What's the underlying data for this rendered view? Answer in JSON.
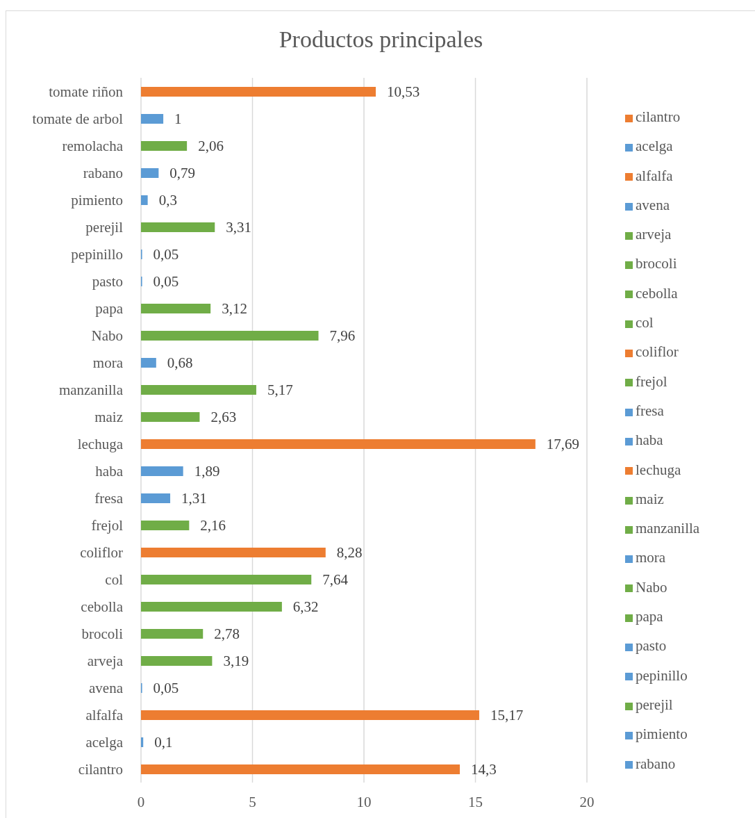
{
  "chart_data": {
    "type": "bar",
    "orientation": "horizontal",
    "stacked": true,
    "title": "Productos principales",
    "categories": [
      "tomate riñon",
      "tomate de arbol",
      "remolacha",
      "rabano",
      "pimiento",
      "perejil",
      "pepinillo",
      "pasto",
      "papa",
      "Nabo",
      "mora",
      "manzanilla",
      "maiz",
      "lechuga",
      "haba",
      "fresa",
      "frejol",
      "coliflor",
      "col",
      "cebolla",
      "brocoli",
      "arveja",
      "avena",
      "alfalfa",
      "acelga",
      "cilantro"
    ],
    "series": [
      {
        "name": "cilantro",
        "color": "#ed7d31",
        "values": [
          null,
          null,
          null,
          null,
          null,
          null,
          null,
          null,
          null,
          null,
          null,
          null,
          null,
          null,
          null,
          null,
          null,
          null,
          null,
          null,
          null,
          null,
          null,
          null,
          null,
          14.3
        ],
        "value_labels": [
          null,
          null,
          null,
          null,
          null,
          null,
          null,
          null,
          null,
          null,
          null,
          null,
          null,
          null,
          null,
          null,
          null,
          null,
          null,
          null,
          null,
          null,
          null,
          null,
          null,
          "14,3"
        ]
      },
      {
        "name": "acelga",
        "color": "#5b9bd5",
        "values": [
          null,
          null,
          null,
          null,
          null,
          null,
          null,
          null,
          null,
          null,
          null,
          null,
          null,
          null,
          null,
          null,
          null,
          null,
          null,
          null,
          null,
          null,
          null,
          null,
          0.1,
          null
        ],
        "value_labels": [
          null,
          null,
          null,
          null,
          null,
          null,
          null,
          null,
          null,
          null,
          null,
          null,
          null,
          null,
          null,
          null,
          null,
          null,
          null,
          null,
          null,
          null,
          null,
          null,
          "0,1",
          null
        ]
      },
      {
        "name": "alfalfa",
        "color": "#ed7d31",
        "values": [
          null,
          null,
          null,
          null,
          null,
          null,
          null,
          null,
          null,
          null,
          null,
          null,
          null,
          null,
          null,
          null,
          null,
          null,
          null,
          null,
          null,
          null,
          null,
          15.17,
          null,
          null
        ],
        "value_labels": [
          null,
          null,
          null,
          null,
          null,
          null,
          null,
          null,
          null,
          null,
          null,
          null,
          null,
          null,
          null,
          null,
          null,
          null,
          null,
          null,
          null,
          null,
          null,
          "15,17",
          null,
          null
        ]
      },
      {
        "name": "avena",
        "color": "#5b9bd5",
        "values": [
          null,
          null,
          null,
          null,
          null,
          null,
          null,
          null,
          null,
          null,
          null,
          null,
          null,
          null,
          null,
          null,
          null,
          null,
          null,
          null,
          null,
          null,
          0.05,
          null,
          null,
          null
        ],
        "value_labels": [
          null,
          null,
          null,
          null,
          null,
          null,
          null,
          null,
          null,
          null,
          null,
          null,
          null,
          null,
          null,
          null,
          null,
          null,
          null,
          null,
          null,
          null,
          "0,05",
          null,
          null,
          null
        ]
      },
      {
        "name": "arveja",
        "color": "#70ad47",
        "values": [
          null,
          null,
          null,
          null,
          null,
          null,
          null,
          null,
          null,
          null,
          null,
          null,
          null,
          null,
          null,
          null,
          null,
          null,
          null,
          null,
          null,
          3.19,
          null,
          null,
          null,
          null
        ],
        "value_labels": [
          null,
          null,
          null,
          null,
          null,
          null,
          null,
          null,
          null,
          null,
          null,
          null,
          null,
          null,
          null,
          null,
          null,
          null,
          null,
          null,
          null,
          "3,19",
          null,
          null,
          null,
          null
        ]
      },
      {
        "name": "brocoli",
        "color": "#70ad47",
        "values": [
          null,
          null,
          null,
          null,
          null,
          null,
          null,
          null,
          null,
          null,
          null,
          null,
          null,
          null,
          null,
          null,
          null,
          null,
          null,
          null,
          2.78,
          null,
          null,
          null,
          null,
          null
        ],
        "value_labels": [
          null,
          null,
          null,
          null,
          null,
          null,
          null,
          null,
          null,
          null,
          null,
          null,
          null,
          null,
          null,
          null,
          null,
          null,
          null,
          null,
          "2,78",
          null,
          null,
          null,
          null,
          null
        ]
      },
      {
        "name": "cebolla",
        "color": "#70ad47",
        "values": [
          null,
          null,
          null,
          null,
          null,
          null,
          null,
          null,
          null,
          null,
          null,
          null,
          null,
          null,
          null,
          null,
          null,
          null,
          null,
          6.32,
          null,
          null,
          null,
          null,
          null,
          null
        ],
        "value_labels": [
          null,
          null,
          null,
          null,
          null,
          null,
          null,
          null,
          null,
          null,
          null,
          null,
          null,
          null,
          null,
          null,
          null,
          null,
          null,
          "6,32",
          null,
          null,
          null,
          null,
          null,
          null
        ]
      },
      {
        "name": "col",
        "color": "#70ad47",
        "values": [
          null,
          null,
          null,
          null,
          null,
          null,
          null,
          null,
          null,
          null,
          null,
          null,
          null,
          null,
          null,
          null,
          null,
          null,
          7.64,
          null,
          null,
          null,
          null,
          null,
          null,
          null
        ],
        "value_labels": [
          null,
          null,
          null,
          null,
          null,
          null,
          null,
          null,
          null,
          null,
          null,
          null,
          null,
          null,
          null,
          null,
          null,
          null,
          "7,64",
          null,
          null,
          null,
          null,
          null,
          null,
          null
        ]
      },
      {
        "name": "coliflor",
        "color": "#ed7d31",
        "values": [
          null,
          null,
          null,
          null,
          null,
          null,
          null,
          null,
          null,
          null,
          null,
          null,
          null,
          null,
          null,
          null,
          null,
          8.28,
          null,
          null,
          null,
          null,
          null,
          null,
          null,
          null
        ],
        "value_labels": [
          null,
          null,
          null,
          null,
          null,
          null,
          null,
          null,
          null,
          null,
          null,
          null,
          null,
          null,
          null,
          null,
          null,
          "8,28",
          null,
          null,
          null,
          null,
          null,
          null,
          null,
          null
        ]
      },
      {
        "name": "frejol",
        "color": "#70ad47",
        "values": [
          null,
          null,
          null,
          null,
          null,
          null,
          null,
          null,
          null,
          null,
          null,
          null,
          null,
          null,
          null,
          null,
          2.16,
          null,
          null,
          null,
          null,
          null,
          null,
          null,
          null,
          null
        ],
        "value_labels": [
          null,
          null,
          null,
          null,
          null,
          null,
          null,
          null,
          null,
          null,
          null,
          null,
          null,
          null,
          null,
          null,
          "2,16",
          null,
          null,
          null,
          null,
          null,
          null,
          null,
          null,
          null
        ]
      },
      {
        "name": "fresa",
        "color": "#5b9bd5",
        "values": [
          null,
          null,
          null,
          null,
          null,
          null,
          null,
          null,
          null,
          null,
          null,
          null,
          null,
          null,
          null,
          1.31,
          null,
          null,
          null,
          null,
          null,
          null,
          null,
          null,
          null,
          null
        ],
        "value_labels": [
          null,
          null,
          null,
          null,
          null,
          null,
          null,
          null,
          null,
          null,
          null,
          null,
          null,
          null,
          null,
          "1,31",
          null,
          null,
          null,
          null,
          null,
          null,
          null,
          null,
          null,
          null
        ]
      },
      {
        "name": "haba",
        "color": "#5b9bd5",
        "values": [
          null,
          null,
          null,
          null,
          null,
          null,
          null,
          null,
          null,
          null,
          null,
          null,
          null,
          null,
          1.89,
          null,
          null,
          null,
          null,
          null,
          null,
          null,
          null,
          null,
          null,
          null
        ],
        "value_labels": [
          null,
          null,
          null,
          null,
          null,
          null,
          null,
          null,
          null,
          null,
          null,
          null,
          null,
          null,
          "1,89",
          null,
          null,
          null,
          null,
          null,
          null,
          null,
          null,
          null,
          null,
          null
        ]
      },
      {
        "name": "lechuga",
        "color": "#ed7d31",
        "values": [
          null,
          null,
          null,
          null,
          null,
          null,
          null,
          null,
          null,
          null,
          null,
          null,
          null,
          17.69,
          null,
          null,
          null,
          null,
          null,
          null,
          null,
          null,
          null,
          null,
          null,
          null
        ],
        "value_labels": [
          null,
          null,
          null,
          null,
          null,
          null,
          null,
          null,
          null,
          null,
          null,
          null,
          null,
          "17,69",
          null,
          null,
          null,
          null,
          null,
          null,
          null,
          null,
          null,
          null,
          null,
          null
        ]
      },
      {
        "name": "maiz",
        "color": "#70ad47",
        "values": [
          null,
          null,
          null,
          null,
          null,
          null,
          null,
          null,
          null,
          null,
          null,
          null,
          2.63,
          null,
          null,
          null,
          null,
          null,
          null,
          null,
          null,
          null,
          null,
          null,
          null,
          null
        ],
        "value_labels": [
          null,
          null,
          null,
          null,
          null,
          null,
          null,
          null,
          null,
          null,
          null,
          null,
          "2,63",
          null,
          null,
          null,
          null,
          null,
          null,
          null,
          null,
          null,
          null,
          null,
          null,
          null
        ]
      },
      {
        "name": "manzanilla",
        "color": "#70ad47",
        "values": [
          null,
          null,
          null,
          null,
          null,
          null,
          null,
          null,
          null,
          null,
          null,
          5.17,
          null,
          null,
          null,
          null,
          null,
          null,
          null,
          null,
          null,
          null,
          null,
          null,
          null,
          null
        ],
        "value_labels": [
          null,
          null,
          null,
          null,
          null,
          null,
          null,
          null,
          null,
          null,
          null,
          "5,17",
          null,
          null,
          null,
          null,
          null,
          null,
          null,
          null,
          null,
          null,
          null,
          null,
          null,
          null
        ]
      },
      {
        "name": "mora",
        "color": "#5b9bd5",
        "values": [
          null,
          null,
          null,
          null,
          null,
          null,
          null,
          null,
          null,
          null,
          0.68,
          null,
          null,
          null,
          null,
          null,
          null,
          null,
          null,
          null,
          null,
          null,
          null,
          null,
          null,
          null
        ],
        "value_labels": [
          null,
          null,
          null,
          null,
          null,
          null,
          null,
          null,
          null,
          null,
          "0,68",
          null,
          null,
          null,
          null,
          null,
          null,
          null,
          null,
          null,
          null,
          null,
          null,
          null,
          null,
          null
        ]
      },
      {
        "name": "Nabo",
        "color": "#70ad47",
        "values": [
          null,
          null,
          null,
          null,
          null,
          null,
          null,
          null,
          null,
          7.96,
          null,
          null,
          null,
          null,
          null,
          null,
          null,
          null,
          null,
          null,
          null,
          null,
          null,
          null,
          null,
          null
        ],
        "value_labels": [
          null,
          null,
          null,
          null,
          null,
          null,
          null,
          null,
          null,
          "7,96",
          null,
          null,
          null,
          null,
          null,
          null,
          null,
          null,
          null,
          null,
          null,
          null,
          null,
          null,
          null,
          null
        ]
      },
      {
        "name": "papa",
        "color": "#70ad47",
        "values": [
          null,
          null,
          null,
          null,
          null,
          null,
          null,
          null,
          3.12,
          null,
          null,
          null,
          null,
          null,
          null,
          null,
          null,
          null,
          null,
          null,
          null,
          null,
          null,
          null,
          null,
          null
        ],
        "value_labels": [
          null,
          null,
          null,
          null,
          null,
          null,
          null,
          null,
          "3,12",
          null,
          null,
          null,
          null,
          null,
          null,
          null,
          null,
          null,
          null,
          null,
          null,
          null,
          null,
          null,
          null,
          null
        ]
      },
      {
        "name": "pasto",
        "color": "#5b9bd5",
        "values": [
          null,
          null,
          null,
          null,
          null,
          null,
          null,
          0.05,
          null,
          null,
          null,
          null,
          null,
          null,
          null,
          null,
          null,
          null,
          null,
          null,
          null,
          null,
          null,
          null,
          null,
          null
        ],
        "value_labels": [
          null,
          null,
          null,
          null,
          null,
          null,
          null,
          "0,05",
          null,
          null,
          null,
          null,
          null,
          null,
          null,
          null,
          null,
          null,
          null,
          null,
          null,
          null,
          null,
          null,
          null,
          null
        ]
      },
      {
        "name": "pepinillo",
        "color": "#5b9bd5",
        "values": [
          null,
          null,
          null,
          null,
          null,
          null,
          0.05,
          null,
          null,
          null,
          null,
          null,
          null,
          null,
          null,
          null,
          null,
          null,
          null,
          null,
          null,
          null,
          null,
          null,
          null,
          null
        ],
        "value_labels": [
          null,
          null,
          null,
          null,
          null,
          null,
          "0,05",
          null,
          null,
          null,
          null,
          null,
          null,
          null,
          null,
          null,
          null,
          null,
          null,
          null,
          null,
          null,
          null,
          null,
          null,
          null
        ]
      },
      {
        "name": "perejil",
        "color": "#70ad47",
        "values": [
          null,
          null,
          null,
          null,
          null,
          3.31,
          null,
          null,
          null,
          null,
          null,
          null,
          null,
          null,
          null,
          null,
          null,
          null,
          null,
          null,
          null,
          null,
          null,
          null,
          null,
          null
        ],
        "value_labels": [
          null,
          null,
          null,
          null,
          null,
          "3,31",
          null,
          null,
          null,
          null,
          null,
          null,
          null,
          null,
          null,
          null,
          null,
          null,
          null,
          null,
          null,
          null,
          null,
          null,
          null,
          null
        ]
      },
      {
        "name": "pimiento",
        "color": "#5b9bd5",
        "values": [
          null,
          null,
          null,
          null,
          0.3,
          null,
          null,
          null,
          null,
          null,
          null,
          null,
          null,
          null,
          null,
          null,
          null,
          null,
          null,
          null,
          null,
          null,
          null,
          null,
          null,
          null
        ],
        "value_labels": [
          null,
          null,
          null,
          null,
          "0,3",
          null,
          null,
          null,
          null,
          null,
          null,
          null,
          null,
          null,
          null,
          null,
          null,
          null,
          null,
          null,
          null,
          null,
          null,
          null,
          null,
          null
        ]
      },
      {
        "name": "rabano",
        "color": "#5b9bd5",
        "values": [
          null,
          null,
          null,
          0.79,
          null,
          null,
          null,
          null,
          null,
          null,
          null,
          null,
          null,
          null,
          null,
          null,
          null,
          null,
          null,
          null,
          null,
          null,
          null,
          null,
          null,
          null
        ],
        "value_labels": [
          null,
          null,
          null,
          "0,79",
          null,
          null,
          null,
          null,
          null,
          null,
          null,
          null,
          null,
          null,
          null,
          null,
          null,
          null,
          null,
          null,
          null,
          null,
          null,
          null,
          null,
          null
        ]
      },
      {
        "color": "#70ad47",
        "values": [
          null,
          null,
          2.06,
          null,
          null,
          null,
          null,
          null,
          null,
          null,
          null,
          null,
          null,
          null,
          null,
          null,
          null,
          null,
          null,
          null,
          null,
          null,
          null,
          null,
          null,
          null
        ],
        "value_labels": [
          null,
          null,
          "2,06",
          null,
          null,
          null,
          null,
          null,
          null,
          null,
          null,
          null,
          null,
          null,
          null,
          null,
          null,
          null,
          null,
          null,
          null,
          null,
          null,
          null,
          null,
          null
        ]
      },
      {
        "color": "#5b9bd5",
        "values": [
          null,
          1,
          null,
          null,
          null,
          null,
          null,
          null,
          null,
          null,
          null,
          null,
          null,
          null,
          null,
          null,
          null,
          null,
          null,
          null,
          null,
          null,
          null,
          null,
          null,
          null
        ],
        "value_labels": [
          null,
          "1",
          null,
          null,
          null,
          null,
          null,
          null,
          null,
          null,
          null,
          null,
          null,
          null,
          null,
          null,
          null,
          null,
          null,
          null,
          null,
          null,
          null,
          null,
          null,
          null
        ]
      },
      {
        "color": "#ed7d31",
        "values": [
          10.53,
          null,
          null,
          null,
          null,
          null,
          null,
          null,
          null,
          null,
          null,
          null,
          null,
          null,
          null,
          null,
          null,
          null,
          null,
          null,
          null,
          null,
          null,
          null,
          null,
          null
        ],
        "value_labels": [
          "10,53",
          null,
          null,
          null,
          null,
          null,
          null,
          null,
          null,
          null,
          null,
          null,
          null,
          null,
          null,
          null,
          null,
          null,
          null,
          null,
          null,
          null,
          null,
          null,
          null,
          null
        ]
      }
    ],
    "xlim": [
      0,
      20
    ],
    "xticks": [
      0,
      5,
      10,
      15,
      20
    ],
    "grid": "x",
    "legend": "right"
  }
}
